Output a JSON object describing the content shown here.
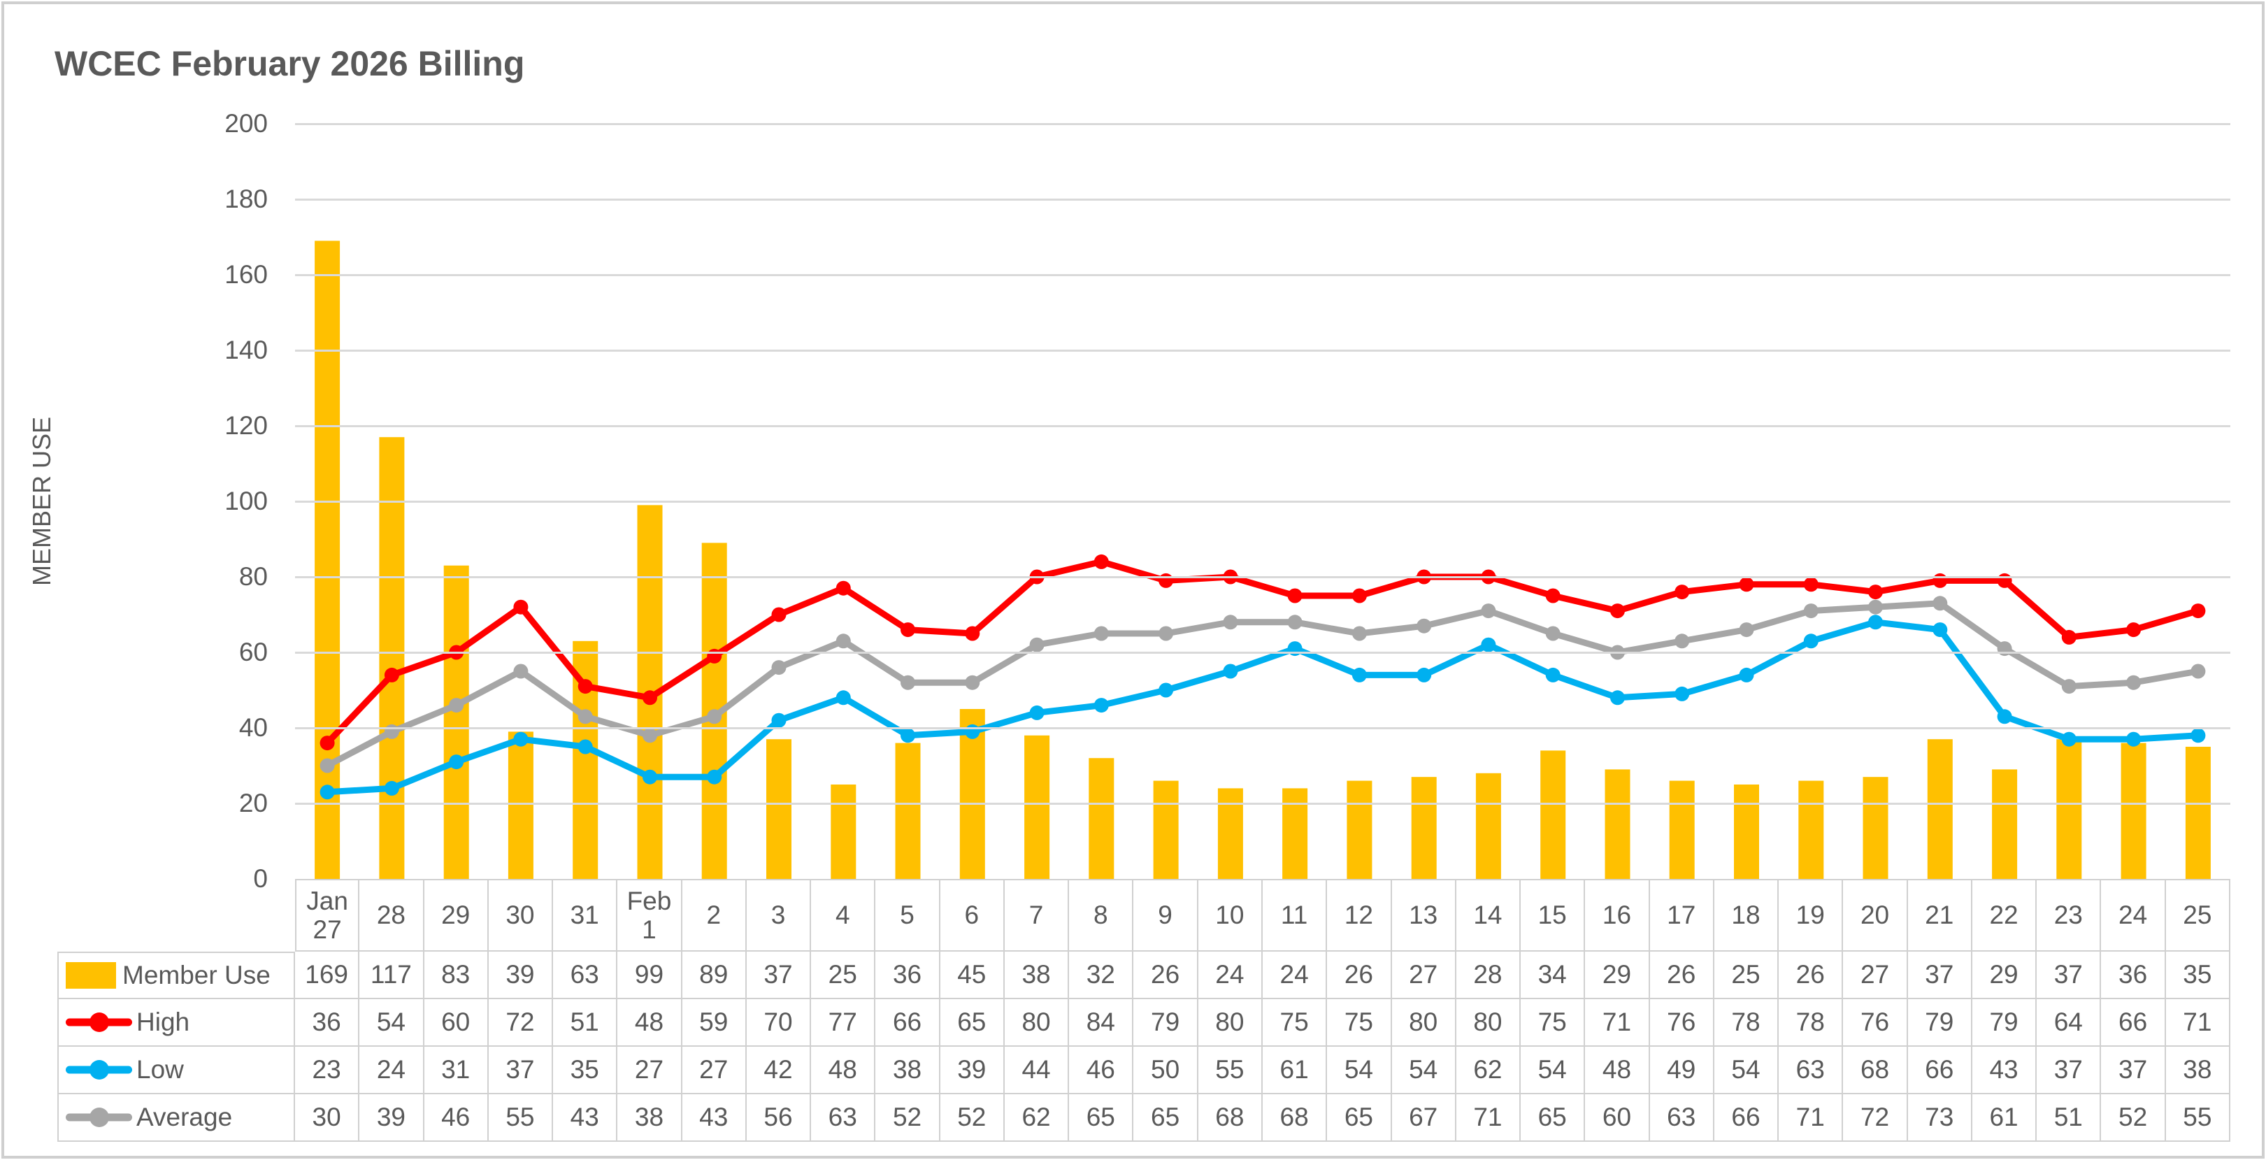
{
  "chart_data": {
    "type": "bar+line combo",
    "title": "WCEC February 2026 Billing",
    "ylabel": "MEMBER USE",
    "xlabel": "",
    "ylim": [
      0,
      200
    ],
    "y_ticks": [
      0,
      20,
      40,
      60,
      80,
      100,
      120,
      140,
      160,
      180,
      200
    ],
    "grid": "horizontal gridlines on",
    "legend_position": "data-table left column",
    "categories": [
      "Jan\n27",
      "28",
      "29",
      "30",
      "31",
      "Feb\n1",
      "2",
      "3",
      "4",
      "5",
      "6",
      "7",
      "8",
      "9",
      "10",
      "11",
      "12",
      "13",
      "14",
      "15",
      "16",
      "17",
      "18",
      "19",
      "20",
      "21",
      "22",
      "23",
      "24",
      "25"
    ],
    "series": [
      {
        "name": "Member Use",
        "type": "bar",
        "color": "#FFC000",
        "values": [
          169,
          117,
          83,
          39,
          63,
          99,
          89,
          37,
          25,
          36,
          45,
          38,
          32,
          26,
          24,
          24,
          26,
          27,
          28,
          34,
          29,
          26,
          25,
          26,
          27,
          37,
          29,
          37,
          36,
          35
        ]
      },
      {
        "name": "High",
        "type": "line",
        "color": "#FF0000",
        "values": [
          36,
          54,
          60,
          72,
          51,
          48,
          59,
          70,
          77,
          66,
          65,
          80,
          84,
          79,
          80,
          75,
          75,
          80,
          80,
          75,
          71,
          76,
          78,
          78,
          76,
          79,
          79,
          64,
          66,
          71
        ]
      },
      {
        "name": "Low",
        "type": "line",
        "color": "#00B0F0",
        "values": [
          23,
          24,
          31,
          37,
          35,
          27,
          27,
          42,
          48,
          38,
          39,
          44,
          46,
          50,
          55,
          61,
          54,
          54,
          62,
          54,
          48,
          49,
          54,
          63,
          68,
          66,
          43,
          37,
          37,
          38
        ]
      },
      {
        "name": "Average",
        "type": "line",
        "color": "#A6A6A6",
        "values": [
          30,
          39,
          46,
          55,
          43,
          38,
          43,
          56,
          63,
          52,
          52,
          62,
          65,
          65,
          68,
          68,
          65,
          67,
          71,
          65,
          60,
          63,
          66,
          71,
          72,
          73,
          61,
          51,
          52,
          55
        ]
      }
    ]
  },
  "colors": {
    "text": "#595959",
    "gridline": "#D9D9D9",
    "table_border": "#D0D0D0",
    "frame_border": "#CFCFCF"
  }
}
